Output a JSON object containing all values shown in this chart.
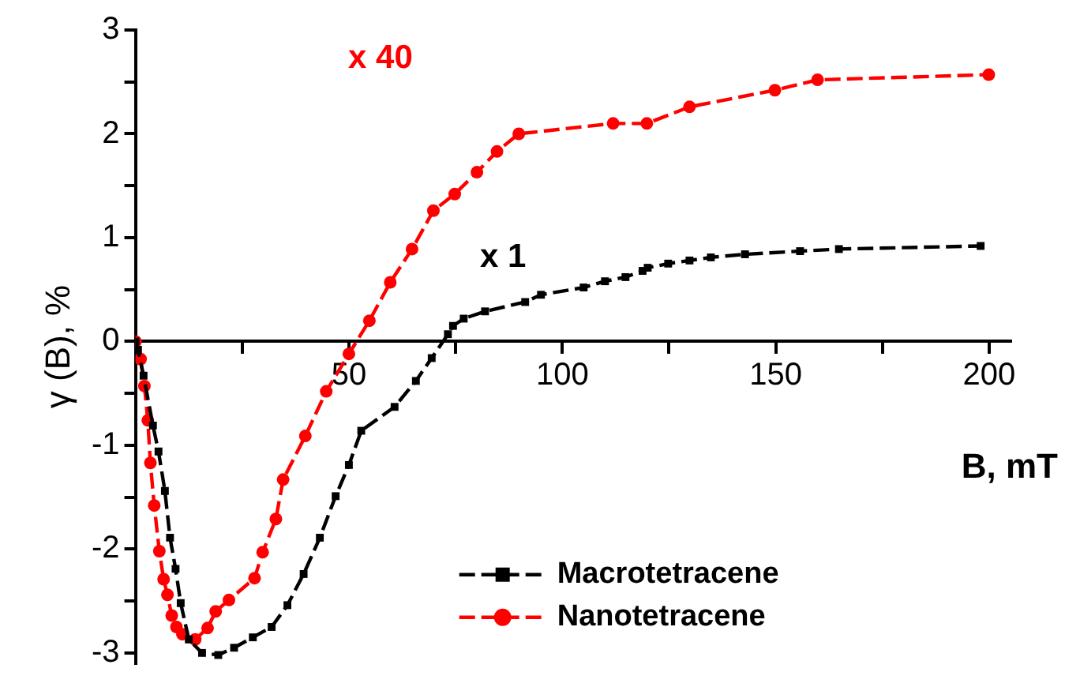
{
  "chart_data": {
    "type": "line",
    "xlabel": "B, mT",
    "ylabel": "γ (B), %",
    "xlim": [
      0,
      205
    ],
    "ylim": [
      -3.1,
      3
    ],
    "xticks": [
      {
        "value": 25,
        "label": null
      },
      50,
      {
        "value": 75,
        "label": null
      },
      100,
      {
        "value": 125,
        "label": null
      },
      150,
      {
        "value": 175,
        "label": null
      },
      200
    ],
    "yticks": [
      -3,
      {
        "value": -2.5,
        "label": null
      },
      -2,
      {
        "value": -1.5,
        "label": null
      },
      -1,
      {
        "value": -0.5,
        "label": null
      },
      0,
      {
        "value": 0.5,
        "label": null
      },
      1,
      {
        "value": 1.5,
        "label": null
      },
      2,
      {
        "value": 2.5,
        "label": null
      },
      3
    ],
    "grid": false,
    "legend": "bottom right",
    "line_style": "dashed",
    "annotations": [
      "x 1",
      "x 40"
    ],
    "series": [
      {
        "name": "Macrotetracene",
        "color": "#000000",
        "marker": "square",
        "x": [
          0,
          0.6,
          1.9,
          4.1,
          5.4,
          6.9,
          8.1,
          9.4,
          10.6,
          12.5,
          15.6,
          19.4,
          23.1,
          27.5,
          31.9,
          35.6,
          39.4,
          43.2,
          46.9,
          50,
          52.9,
          60.7,
          65.7,
          69.4,
          73.2,
          74.4,
          76.9,
          81.9,
          91.3,
          95,
          105,
          110,
          114.8,
          118.8,
          120,
          124.8,
          129.8,
          134.8,
          142.8,
          155.7,
          164.8,
          198
        ],
        "values": [
          0,
          -0.08,
          -0.33,
          -0.81,
          -1.06,
          -1.44,
          -1.89,
          -2.19,
          -2.52,
          -2.87,
          -3.0,
          -3.02,
          -2.95,
          -2.85,
          -2.75,
          -2.54,
          -2.24,
          -1.89,
          -1.49,
          -1.19,
          -0.86,
          -0.63,
          -0.38,
          -0.16,
          0.07,
          0.15,
          0.22,
          0.29,
          0.38,
          0.45,
          0.52,
          0.58,
          0.62,
          0.68,
          0.71,
          0.75,
          0.78,
          0.81,
          0.84,
          0.87,
          0.89,
          0.92
        ]
      },
      {
        "name": "Nanotetracene",
        "color": "#ff0000",
        "marker": "circle",
        "x": [
          0,
          1.2,
          2.1,
          2.9,
          3.5,
          4.4,
          5.6,
          6.6,
          7.5,
          8.5,
          9.6,
          11,
          14,
          16.9,
          18.8,
          21.9,
          27.9,
          29.8,
          32.9,
          34.6,
          39.8,
          44.7,
          50,
          54.8,
          59.7,
          64.8,
          69.8,
          74.8,
          80,
          84.7,
          89.8,
          111.9,
          119.8,
          129.8,
          149.8,
          159.8,
          199.9
        ],
        "values": [
          0,
          -0.17,
          -0.43,
          -0.76,
          -1.17,
          -1.58,
          -2.02,
          -2.29,
          -2.44,
          -2.64,
          -2.75,
          -2.82,
          -2.87,
          -2.76,
          -2.6,
          -2.49,
          -2.28,
          -2.03,
          -1.71,
          -1.33,
          -0.91,
          -0.48,
          -0.12,
          0.2,
          0.57,
          0.89,
          1.26,
          1.42,
          1.63,
          1.83,
          2.0,
          2.1,
          2.1,
          2.26,
          2.42,
          2.52,
          2.57
        ]
      }
    ]
  }
}
